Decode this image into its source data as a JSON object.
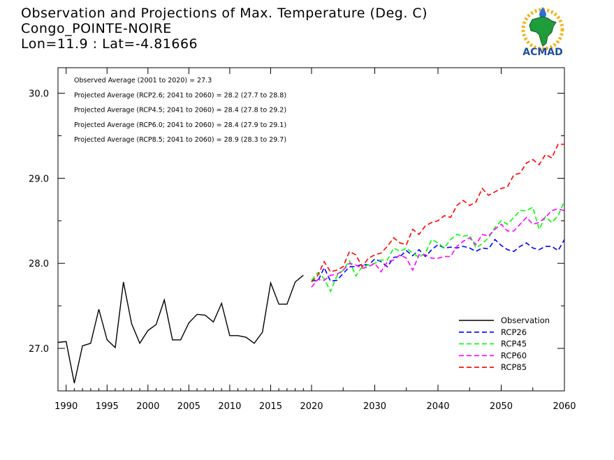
{
  "title": {
    "line1": "Observation and Projections of Max. Temperature (Deg. C)",
    "line2": "Congo_POINTE-NOIRE",
    "line3": "Lon=11.9 : Lat=-4.81666"
  },
  "logo": {
    "text": "ACMAD"
  },
  "annotations": [
    "Observed Average (2001 to 2020) = 27.3",
    "Projected Average (RCP2.6; 2041 to 2060) = 28.2 (27.7 to 28.8)",
    "Projected Average (RCP4.5; 2041 to 2060) = 28.4 (27.8 to 29.2)",
    "Projected Average (RCP6.0; 2041 to 2060) = 28.4 (27.9 to 29.1)",
    "Projected Average (RCP8.5; 2041 to 2060) = 28.9 (28.3 to 29.7)"
  ],
  "chart_data": {
    "type": "line",
    "title": "Observation and Projections of Max. Temperature (Deg. C)",
    "xlabel": "",
    "ylabel": "",
    "ylim": [
      26.5,
      30.3
    ],
    "xlim": [
      1989,
      2060
    ],
    "grid": false,
    "legend_position": "bottom-right",
    "x_ticks_left": [
      1990,
      1995,
      2000,
      2005,
      2010,
      2015,
      2020
    ],
    "x_ticks_right": [
      2030,
      2040,
      2050,
      2060
    ],
    "y_ticks": [
      "27.0",
      "28.0",
      "29.0",
      "30.0"
    ],
    "series": [
      {
        "name": "Observation",
        "color": "#000000",
        "dash": false,
        "x": [
          1989,
          1990,
          1991,
          1992,
          1993,
          1994,
          1995,
          1996,
          1997,
          1998,
          1999,
          2000,
          2001,
          2002,
          2003,
          2004,
          2005,
          2006,
          2007,
          2008,
          2009,
          2010,
          2011,
          2012,
          2013,
          2014,
          2015,
          2016,
          2017,
          2018,
          2019
        ],
        "y": [
          27.07,
          27.08,
          26.59,
          27.03,
          27.06,
          27.46,
          27.1,
          27.01,
          27.78,
          27.29,
          27.06,
          27.21,
          27.28,
          27.57,
          27.1,
          27.1,
          27.3,
          27.4,
          27.39,
          27.31,
          27.53,
          27.15,
          27.15,
          27.13,
          27.06,
          27.19,
          27.77,
          27.52,
          27.52,
          27.78,
          27.86
        ]
      },
      {
        "name": "RCP26",
        "color": "#0000ff",
        "dash": true,
        "x": [
          2020,
          2021,
          2022,
          2023,
          2024,
          2025,
          2026,
          2027,
          2028,
          2029,
          2030,
          2031,
          2032,
          2033,
          2034,
          2035,
          2036,
          2037,
          2038,
          2039,
          2040,
          2041,
          2042,
          2043,
          2044,
          2045,
          2046,
          2047,
          2048,
          2049,
          2050,
          2051,
          2052,
          2053,
          2054,
          2055,
          2056,
          2057,
          2058,
          2059,
          2060
        ],
        "y": [
          27.8,
          27.79,
          27.95,
          27.79,
          27.8,
          27.88,
          27.96,
          27.96,
          27.99,
          27.98,
          28.05,
          28.02,
          27.96,
          28.07,
          28.08,
          28.15,
          28.09,
          28.16,
          28.08,
          28.16,
          28.22,
          28.18,
          28.19,
          28.18,
          28.2,
          28.18,
          28.14,
          28.18,
          28.17,
          28.28,
          28.21,
          28.16,
          28.14,
          28.2,
          28.24,
          28.18,
          28.16,
          28.2,
          28.2,
          28.15,
          28.28
        ]
      },
      {
        "name": "RCP45",
        "color": "#00ff00",
        "dash": true,
        "x": [
          2020,
          2021,
          2022,
          2023,
          2024,
          2025,
          2026,
          2027,
          2028,
          2029,
          2030,
          2031,
          2032,
          2033,
          2034,
          2035,
          2036,
          2037,
          2038,
          2039,
          2040,
          2041,
          2042,
          2043,
          2044,
          2045,
          2046,
          2047,
          2048,
          2049,
          2050,
          2051,
          2052,
          2053,
          2054,
          2055,
          2056,
          2057,
          2058,
          2059,
          2060
        ],
        "y": [
          27.8,
          27.89,
          27.82,
          27.67,
          27.85,
          27.92,
          28.03,
          27.85,
          27.96,
          27.98,
          28.0,
          28.04,
          28.04,
          28.18,
          28.14,
          28.18,
          28.12,
          28.07,
          28.12,
          28.28,
          28.24,
          28.18,
          28.28,
          28.34,
          28.32,
          28.33,
          28.18,
          28.23,
          28.3,
          28.42,
          28.5,
          28.46,
          28.54,
          28.62,
          28.62,
          28.66,
          28.4,
          28.55,
          28.48,
          28.56,
          28.73
        ]
      },
      {
        "name": "RCP60",
        "color": "#ff00ff",
        "dash": true,
        "x": [
          2020,
          2021,
          2022,
          2023,
          2024,
          2025,
          2026,
          2027,
          2028,
          2029,
          2030,
          2031,
          2032,
          2033,
          2034,
          2035,
          2036,
          2037,
          2038,
          2039,
          2040,
          2041,
          2042,
          2043,
          2044,
          2045,
          2046,
          2047,
          2048,
          2049,
          2050,
          2051,
          2052,
          2053,
          2054,
          2055,
          2056,
          2057,
          2058,
          2059,
          2060
        ],
        "y": [
          27.72,
          27.81,
          27.8,
          27.86,
          27.87,
          27.92,
          28.0,
          27.98,
          27.94,
          27.96,
          28.0,
          27.9,
          28.02,
          28.04,
          28.1,
          28.06,
          27.92,
          28.1,
          28.1,
          28.06,
          28.06,
          28.08,
          28.08,
          28.2,
          28.26,
          28.3,
          28.22,
          28.34,
          28.32,
          28.4,
          28.46,
          28.38,
          28.38,
          28.46,
          28.54,
          28.46,
          28.48,
          28.54,
          28.62,
          28.64,
          28.62
        ]
      },
      {
        "name": "RCP85",
        "color": "#ff0000",
        "dash": true,
        "x": [
          2020,
          2021,
          2022,
          2023,
          2024,
          2025,
          2026,
          2027,
          2028,
          2029,
          2030,
          2031,
          2032,
          2033,
          2034,
          2035,
          2036,
          2037,
          2038,
          2039,
          2040,
          2041,
          2042,
          2043,
          2044,
          2045,
          2046,
          2047,
          2048,
          2049,
          2050,
          2051,
          2052,
          2053,
          2054,
          2055,
          2056,
          2057,
          2058,
          2059,
          2060
        ],
        "y": [
          27.78,
          27.86,
          28.02,
          27.9,
          27.92,
          27.96,
          28.14,
          28.1,
          27.96,
          28.06,
          28.1,
          28.12,
          28.2,
          28.3,
          28.24,
          28.22,
          28.4,
          28.34,
          28.44,
          28.48,
          28.5,
          28.56,
          28.54,
          28.68,
          28.74,
          28.68,
          28.72,
          28.88,
          28.8,
          28.84,
          28.88,
          28.9,
          29.04,
          29.06,
          29.18,
          29.22,
          29.16,
          29.28,
          29.24,
          29.4,
          29.4
        ]
      }
    ]
  }
}
